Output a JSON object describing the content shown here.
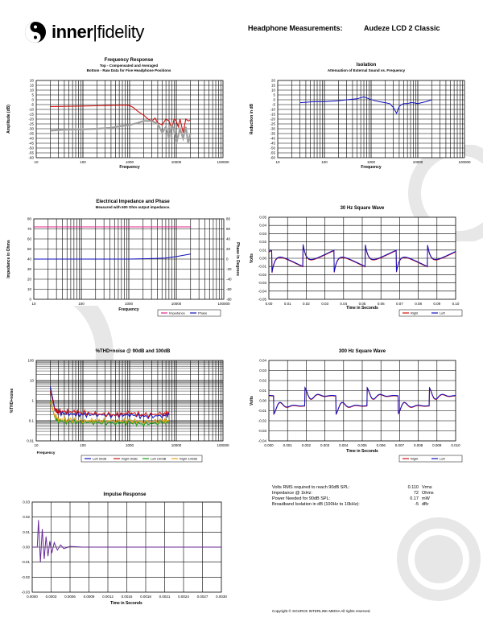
{
  "header": {
    "logo_bold": "inner",
    "logo_sep": "|",
    "logo_thin": "fidelity",
    "title": "Headphone Measurements:",
    "model": "Audeze LCD 2 Classic"
  },
  "charts": {
    "freq": {
      "title": "Frequency Response",
      "subtitle1": "Top - Compensated and Averaged",
      "subtitle2": "Bottom - Raw Data for Five Headphone Positions",
      "xlabel": "Frequency",
      "ylabel": "Amplitude (dB)"
    },
    "iso": {
      "title": "Isolation",
      "subtitle1": "Attenuation of External Sound vs. Frequency",
      "xlabel": "Frequency",
      "ylabel": "Reduction in dB"
    },
    "imp": {
      "title": "Electrical Impedance and Phase",
      "subtitle1": "Measured with 600 Ohm output impedance.",
      "xlabel": "Frequency",
      "ylabel": "Impedance in Ohms",
      "ylabel2": "Phase in Degrees"
    },
    "sq30": {
      "title": "30 Hz Square Wave",
      "xlabel": "Time in Seconds",
      "ylabel": "Volts"
    },
    "thd": {
      "title": "%THD+noise @ 90dB and 100dB",
      "xlabel": "Frequency",
      "ylabel": "%THD+noise"
    },
    "sq300": {
      "title": "300 Hz Square Wave",
      "xlabel": "Time in Seconds",
      "ylabel": "Volts"
    },
    "impulse": {
      "title": "Impulse Response",
      "xlabel": "Time in Seconds"
    }
  },
  "specs": [
    {
      "label": "Volts RMS required to reach 90dB SPL:",
      "value": "0.110",
      "unit": "Vrms"
    },
    {
      "label": "Impedance @ 1kHz:",
      "value": "72",
      "unit": "Ohms"
    },
    {
      "label": "Power Needed for 90dB SPL:",
      "value": "0.17",
      "unit": "mW"
    },
    {
      "label": "Broadband Isolation in dB (100Hz to 10kHz):",
      "value": "-5",
      "unit": "dBr"
    }
  ],
  "copyright": "Copyright © SOURCE INTERLINK MEDIA All rights reserved.",
  "colors": {
    "red": "#d01010",
    "blue": "#1010c0",
    "green": "#10a010",
    "orange": "#f0a010",
    "gray": "#a0a0a0",
    "pink": "#e0208a",
    "purple": "#6a2a9a"
  },
  "chart_data": [
    {
      "id": "freq",
      "type": "line",
      "xscale": "log",
      "xlim": [
        10,
        100000
      ],
      "ylim": [
        -60,
        20
      ],
      "xticks": [
        "10",
        "100",
        "1000",
        "10000",
        "100000"
      ],
      "yticks": [
        "20",
        "15",
        "10",
        "5",
        "0",
        "-5",
        "-10",
        "-15",
        "-20",
        "-25",
        "-30",
        "-35",
        "-40",
        "-45",
        "-50",
        "-55",
        "-60"
      ],
      "series": [
        {
          "color": "red",
          "x": [
            20,
            40,
            100,
            300,
            800,
            1000,
            1200,
            1500,
            2000,
            2500,
            3000,
            3500,
            4000,
            5000,
            6000,
            7000,
            8000,
            9000,
            10000,
            11000,
            12000,
            14000,
            16000,
            18000,
            20000
          ],
          "y": [
            -7,
            -6.8,
            -6.5,
            -6,
            -5.5,
            -6,
            -8,
            -12,
            -16,
            -20,
            -22,
            -19,
            -24,
            -26,
            -20,
            -22,
            -30,
            -20,
            -22,
            -28,
            -20,
            -34,
            -20,
            -22,
            -21
          ]
        },
        {
          "color": "gray",
          "x": [
            20,
            40,
            100,
            200,
            400,
            700,
            1000,
            1500,
            2000,
            3000,
            4000,
            5000,
            6000,
            7000,
            8000,
            9000,
            10000,
            12000,
            14000,
            16000,
            18000,
            20000
          ],
          "y": [
            -32,
            -31,
            -30.5,
            -30,
            -29,
            -27,
            -26,
            -24,
            -22,
            -22,
            -25,
            -34,
            -28,
            -40,
            -26,
            -32,
            -45,
            -30,
            -40,
            -28,
            -45,
            -35
          ]
        }
      ]
    },
    {
      "id": "iso",
      "type": "line",
      "xscale": "log",
      "xlim": [
        10,
        100000
      ],
      "ylim": [
        -60,
        20
      ],
      "xticks": [
        "10",
        "100",
        "1000",
        "10000",
        "100000"
      ],
      "yticks": [
        "20",
        "15",
        "10",
        "5",
        "0",
        "-5",
        "-10",
        "-15",
        "-20",
        "-25",
        "-30",
        "-35",
        "-40",
        "-45",
        "-50",
        "-55",
        "-60"
      ],
      "series": [
        {
          "color": "blue",
          "x": [
            30,
            60,
            100,
            200,
            300,
            500,
            700,
            900,
            1200,
            1500,
            2000,
            2500,
            3000,
            3500,
            4000,
            4500,
            5000,
            6000,
            7000,
            8000,
            10000,
            12000,
            15000,
            20000
          ],
          "y": [
            -3,
            -2,
            -2,
            -1,
            0,
            1,
            3,
            1,
            -1,
            -2,
            -3,
            -4,
            -8,
            -14,
            -7,
            -5,
            -4,
            -4,
            -3,
            -3,
            -4,
            -3,
            -2,
            0
          ]
        }
      ]
    },
    {
      "id": "imp",
      "type": "line",
      "xscale": "log",
      "xlim": [
        10,
        100000
      ],
      "ylim": [
        0,
        80
      ],
      "y2lim": [
        -80,
        80
      ],
      "xticks": [
        "10",
        "100",
        "1000",
        "10000",
        "100000"
      ],
      "yticks": [
        "80",
        "70",
        "60",
        "50",
        "40",
        "30",
        "20",
        "10",
        "0"
      ],
      "y2ticks": [
        "80",
        "60",
        "40",
        "20",
        "0",
        "-20",
        "-40",
        "-60",
        "-80"
      ],
      "series": [
        {
          "name": "Impedance",
          "color": "pink",
          "axis": "y",
          "x": [
            10,
            100,
            1000,
            10000,
            20000
          ],
          "y": [
            72,
            72,
            72,
            72,
            72
          ]
        },
        {
          "name": "Phase",
          "color": "blue",
          "axis": "y2",
          "x": [
            10,
            100,
            1000,
            3000,
            6000,
            10000,
            15000,
            20000
          ],
          "y": [
            0,
            0,
            0,
            1,
            2,
            5,
            8,
            10
          ]
        }
      ]
    },
    {
      "id": "sq30",
      "type": "line",
      "xlim": [
        0,
        0.1
      ],
      "ylim": [
        -0.05,
        0.05
      ],
      "xticks": [
        "0.00",
        "0.01",
        "0.02",
        "0.03",
        "0.04",
        "0.05",
        "0.06",
        "0.07",
        "0.08",
        "0.09",
        "0.10"
      ],
      "yticks": [
        "0.05",
        "0.04",
        "0.03",
        "0.02",
        "0.01",
        "0.00",
        "-0.01",
        "-0.02",
        "-0.03",
        "-0.04",
        "-0.05"
      ],
      "series": [
        {
          "name": "Right",
          "color": "red"
        },
        {
          "name": "Left",
          "color": "blue"
        }
      ],
      "period": 0.0333,
      "amplitude": 0.028
    },
    {
      "id": "thd",
      "type": "line",
      "xscale": "log",
      "yscale": "log",
      "xlim": [
        10,
        100000
      ],
      "ylim": [
        0.01,
        100
      ],
      "xticks": [
        "10",
        "100",
        "1000",
        "10000",
        "100000"
      ],
      "yticks": [
        "100",
        "10",
        "1",
        "0.1",
        "0.01"
      ],
      "series": [
        {
          "name": "Left 90dB",
          "color": "blue",
          "x": [
            20,
            25,
            30,
            50,
            100,
            200,
            500,
            1000,
            2000,
            5000,
            7000
          ],
          "y": [
            5,
            0.4,
            0.25,
            0.22,
            0.2,
            0.2,
            0.18,
            0.2,
            0.16,
            0.18,
            0.2
          ]
        },
        {
          "name": "Right 90dB",
          "color": "red",
          "x": [
            20,
            25,
            30,
            50,
            100,
            200,
            500,
            1000,
            2000,
            5000,
            7000
          ],
          "y": [
            3,
            0.35,
            0.3,
            0.28,
            0.26,
            0.22,
            0.2,
            0.25,
            0.2,
            0.22,
            0.25
          ]
        },
        {
          "name": "Left 100dB",
          "color": "green",
          "x": [
            20,
            25,
            30,
            50,
            100,
            200,
            500,
            1000,
            2000,
            5000,
            7000
          ],
          "y": [
            1,
            0.15,
            0.1,
            0.09,
            0.09,
            0.08,
            0.08,
            0.08,
            0.07,
            0.08,
            0.09
          ]
        },
        {
          "name": "Right 100dB",
          "color": "orange",
          "x": [
            20,
            25,
            30,
            50,
            100,
            200,
            500,
            1000,
            2000,
            5000,
            7000
          ],
          "y": [
            0.8,
            0.18,
            0.12,
            0.11,
            0.1,
            0.1,
            0.1,
            0.1,
            0.09,
            0.1,
            0.1
          ]
        }
      ]
    },
    {
      "id": "sq300",
      "type": "line",
      "xlim": [
        0,
        0.01
      ],
      "ylim": [
        -0.04,
        0.04
      ],
      "xticks": [
        "0.000",
        "0.001",
        "0.002",
        "0.003",
        "0.004",
        "0.005",
        "0.006",
        "0.007",
        "0.008",
        "0.009",
        "0.010"
      ],
      "yticks": [
        "0.04",
        "0.03",
        "0.02",
        "0.01",
        "0.00",
        "-0.01",
        "-0.02",
        "-0.03",
        "-0.04"
      ],
      "series": [
        {
          "name": "Right",
          "color": "red"
        },
        {
          "name": "Left",
          "color": "blue"
        }
      ],
      "period": 0.00333,
      "amplitude": 0.012
    },
    {
      "id": "impulse",
      "type": "line",
      "xlim": [
        0,
        0.003
      ],
      "ylim": [
        -0.03,
        0.03
      ],
      "xticks": [
        "0.0000",
        "0.0003",
        "0.0006",
        "0.0009",
        "0.0012",
        "0.0015",
        "0.0018",
        "0.0021",
        "0.0024",
        "0.0027",
        "0.0030"
      ],
      "yticks": [
        "0.03",
        "0.02",
        "0.01",
        "0.00",
        "-0.01",
        "-0.02",
        "-0.03"
      ],
      "series": [
        {
          "color": "purple",
          "x": [
            0,
            8e-05,
            0.0001,
            0.00013,
            0.00016,
            0.00019,
            0.00022,
            0.00025,
            0.00028,
            0.00031,
            0.00035,
            0.0004,
            0.00045,
            0.0005,
            0.0006,
            0.0008,
            0.001,
            0.003
          ],
          "y": [
            0,
            0,
            0.018,
            -0.01,
            0.012,
            -0.008,
            0.007,
            -0.006,
            0.004,
            -0.004,
            0.003,
            -0.002,
            0.0015,
            -0.001,
            0.0005,
            0,
            0,
            0
          ]
        }
      ]
    }
  ]
}
